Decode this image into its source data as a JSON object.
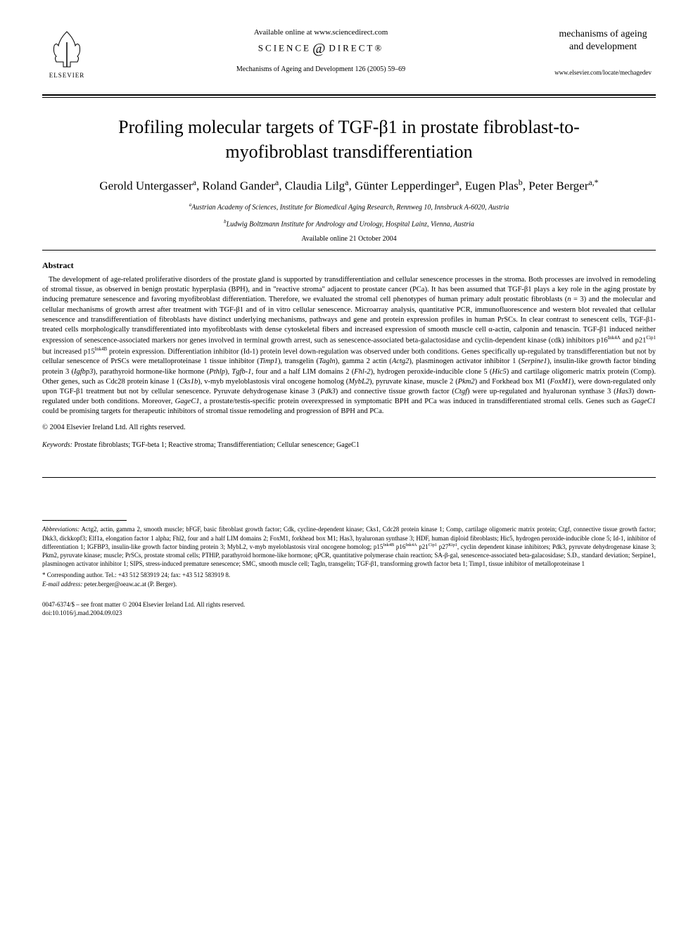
{
  "header": {
    "publisher": "ELSEVIER",
    "avail_online": "Available online at www.sciencedirect.com",
    "sciencedirect_left": "SCIENCE",
    "sciencedirect_right": "DIRECT®",
    "journal_ref": "Mechanisms of Ageing and Development 126 (2005) 59–69",
    "journal_logo_line1": "mechanisms of ageing",
    "journal_logo_line2": "and development",
    "journal_url": "www.elsevier.com/locate/mechagedev"
  },
  "title": "Profiling molecular targets of TGF-β1 in prostate fibroblast-to-myofibroblast transdifferentiation",
  "authors_html": "Gerold Untergasser<sup>a</sup>, Roland Gander<sup>a</sup>, Claudia Lilg<sup>a</sup>, Günter Lepperdinger<sup>a</sup>, Eugen Plas<sup>b</sup>, Peter Berger<sup>a,*</sup>",
  "affiliations": {
    "a": "Austrian Academy of Sciences, Institute for Biomedical Aging Research, Rennweg 10, Innsbruck A-6020, Austria",
    "b": "Ludwig Boltzmann Institute for Andrology and Urology, Hospital Lainz, Vienna, Austria"
  },
  "avail_date": "Available online 21 October 2004",
  "abstract_heading": "Abstract",
  "abstract_body": "The development of age-related proliferative disorders of the prostate gland is supported by transdifferentiation and cellular senescence processes in the stroma. Both processes are involved in remodeling of stromal tissue, as observed in benign prostatic hyperplasia (BPH), and in \"reactive stroma\" adjacent to prostate cancer (PCa). It has been assumed that TGF-β1 plays a key role in the aging prostate by inducing premature senescence and favoring myofibroblast differentiation. Therefore, we evaluated the stromal cell phenotypes of human primary adult prostatic fibroblasts (n = 3) and the molecular and cellular mechanisms of growth arrest after treatment with TGF-β1 and of in vitro cellular senescence. Microarray analysis, quantitative PCR, immunofluorescence and western blot revealed that cellular senescence and transdifferentiation of fibroblasts have distinct underlying mechanisms, pathways and gene and protein expression profiles in human PrSCs. In clear contrast to senescent cells, TGF-β1-treated cells morphologically transdifferentiated into myofibroblasts with dense cytoskeletal fibers and increased expression of smooth muscle cell α-actin, calponin and tenascin. TGF-β1 induced neither expression of senescence-associated markers nor genes involved in terminal growth arrest, such as senescence-associated beta-galactosidase and cyclin-dependent kinase (cdk) inhibitors p16Ink4A and p21Cip1 but increased p15Ink4B protein expression. Differentiation inhibitor (Id-1) protein level down-regulation was observed under both conditions. Genes specifically up-regulated by transdifferentiation but not by cellular senescence of PrSCs were metalloproteinase 1 tissue inhibitor (Timp1), transgelin (Tagln), gamma 2 actin (Actg2), plasminogen activator inhibitor 1 (Serpine1), insulin-like growth factor binding protein 3 (Igfbp3), parathyroid hormone-like hormone (Pthlp), Tgfb-1, four and a half LIM domains 2 (Fhl-2), hydrogen peroxide-inducible clone 5 (Hic5) and cartilage oligomeric matrix protein (Comp). Other genes, such as Cdc28 protein kinase 1 (Cks1b), v-myb myeloblastosis viral oncogene homolog (MybL2), pyruvate kinase, muscle 2 (Pkm2) and Forkhead box M1 (FoxM1), were down-regulated only upon TGF-β1 treatment but not by cellular senescence. Pyruvate dehydrogenase kinase 3 (Pdk3) and connective tissue growth factor (Ctgf) were up-regulated and hyaluronan synthase 3 (Has3) down-regulated under both conditions. Moreover, GageC1, a prostate/testis-specific protein overexpressed in symptomatic BPH and PCa was induced in transdifferentiated stromal cells. Genes such as GageC1 could be promising targets for therapeutic inhibitors of stromal tissue remodeling and progression of BPH and PCa.",
  "copyright": "© 2004 Elsevier Ireland Ltd. All rights reserved.",
  "keywords_label": "Keywords:",
  "keywords": "Prostate fibroblasts; TGF-beta 1; Reactive stroma; Transdifferentiation; Cellular senescence; GageC1",
  "abbreviations_label": "Abbreviations:",
  "abbreviations": "Actg2, actin, gamma 2, smooth muscle; bFGF, basic fibroblast growth factor; Cdk, cycline-dependent kinase; Cks1, Cdc28 protein kinase 1; Comp, cartilage oligomeric matrix protein; Ctgf, connective tissue growth factor; Dkk3, dickkopf3; Elf1a, elongation factor 1 alpha; Fhl2, four and a half LIM domains 2; FoxM1, forkhead box M1; Has3, hyaluronan synthase 3; HDF, human diploid fibroblasts; Hic5, hydrogen peroxide-inducible clone 5; Id-1, inhibitor of differentiation 1; IGFBP3, insulin-like growth factor binding protein 3; MybL2, v-myb myeloblastosis viral oncogene homolog; p15Ink4B p16Ink4A p21Cip1 p27Kip1, cyclin dependent kinase inhibitors; Pdk3, pyruvate dehydrogenase kinase 3; Pkm2, pyruvate kinase; muscle; PrSCs, prostate stromal cells; PTHlP, parathyroid hormone-like hormone; qPCR, quantitative polymerase chain reaction; SA-β-gal, senescence-associated beta-galacosidase; S.D., standard deviation; Serpine1, plasminogen activator inhibitor 1; SIPS, stress-induced premature senescence; SMC, smooth muscle cell; Tagln, transgelin; TGF-β1, transforming growth factor beta 1; Timp1, tissue inhibitor of metalloproteinase 1",
  "corresponding": {
    "star": "* Corresponding author. Tel.: +43 512 583919 24; fax: +43 512 583919 8.",
    "email_label": "E-mail address:",
    "email": "peter.berger@oeaw.ac.at (P. Berger)."
  },
  "footer": {
    "issn": "0047-6374/$ – see front matter © 2004 Elsevier Ireland Ltd. All rights reserved.",
    "doi": "doi:10.1016/j.mad.2004.09.023"
  },
  "colors": {
    "text": "#000000",
    "background": "#ffffff"
  }
}
